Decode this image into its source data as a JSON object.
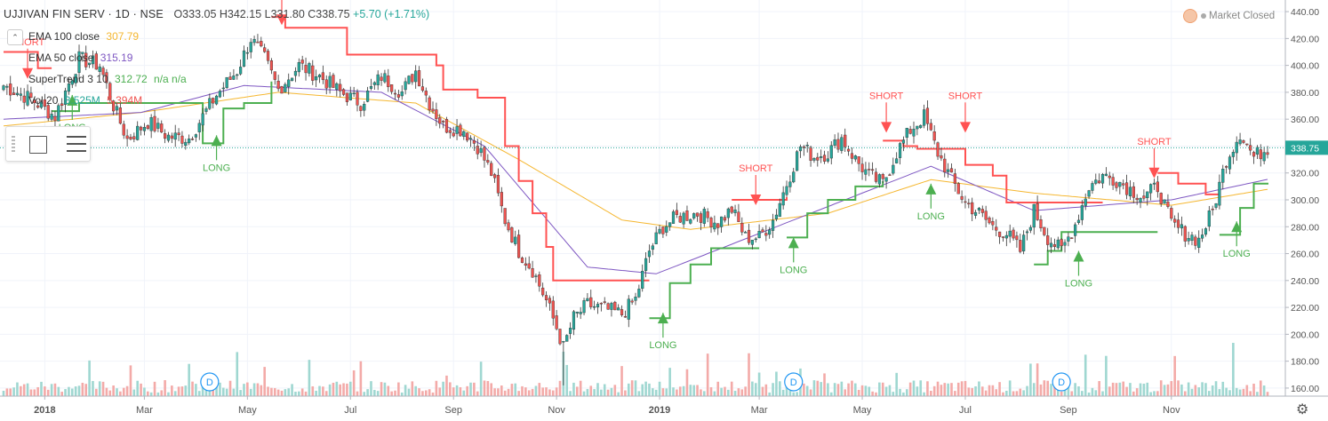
{
  "header": {
    "symbol": "UJJIVAN FIN SERV · 1D · NSE",
    "ohlc": "O333.05 H342.15 L331.80 C338.75",
    "change": "+5.70 (+1.71%)"
  },
  "market_status": "Market Closed",
  "indicators": [
    {
      "label": "EMA 100 close",
      "value": "307.79",
      "color": "#f5b731"
    },
    {
      "label": "EMA 50 close",
      "value": "315.19",
      "color": "#7e57c2"
    },
    {
      "label": "SuperTrend 3 10",
      "value": "312.72",
      "extra": "n/a n/a",
      "color": "#26a69a"
    },
    {
      "label": "Vol 20",
      "value": "3.525M",
      "value2": "5.394M",
      "color": "#26a69a"
    }
  ],
  "colors": {
    "up": "#26a69a",
    "down": "#ef5350",
    "st_up": "#4caf50",
    "st_down": "#ff5252",
    "ema100": "#f5b731",
    "ema50": "#7e57c2",
    "grid": "#f0f3fa"
  },
  "icons": [
    "chevron-down-icon",
    "drag-handle-icon",
    "rectangle-tool-icon",
    "object-tree-icon",
    "settings-gear-icon",
    "market-status-icon"
  ],
  "chart_data": {
    "type": "candlestick",
    "y_axis_ticks": [
      "440.00",
      "420.00",
      "400.00",
      "380.00",
      "360.00",
      "340.00",
      "320.00",
      "300.00",
      "280.00",
      "260.00",
      "240.00",
      "220.00",
      "200.00",
      "180.00",
      "160.00"
    ],
    "ylim": [
      154,
      446
    ],
    "x_axis_labels": [
      "2018",
      "Mar",
      "May",
      "Jul",
      "Sep",
      "Nov",
      "2019",
      "Mar",
      "May",
      "Jul",
      "Sep",
      "Nov"
    ],
    "last_price": "338.75",
    "price_path": [
      {
        "t": 0,
        "p": 385
      },
      {
        "t": 8,
        "p": 375
      },
      {
        "t": 15,
        "p": 362
      },
      {
        "t": 22,
        "p": 405
      },
      {
        "t": 28,
        "p": 400
      },
      {
        "t": 32,
        "p": 370
      },
      {
        "t": 36,
        "p": 345
      },
      {
        "t": 42,
        "p": 358
      },
      {
        "t": 48,
        "p": 347
      },
      {
        "t": 54,
        "p": 346
      },
      {
        "t": 62,
        "p": 378
      },
      {
        "t": 68,
        "p": 396
      },
      {
        "t": 72,
        "p": 420
      },
      {
        "t": 76,
        "p": 405
      },
      {
        "t": 80,
        "p": 382
      },
      {
        "t": 86,
        "p": 400
      },
      {
        "t": 92,
        "p": 392
      },
      {
        "t": 98,
        "p": 380
      },
      {
        "t": 104,
        "p": 372
      },
      {
        "t": 110,
        "p": 392
      },
      {
        "t": 116,
        "p": 380
      },
      {
        "t": 120,
        "p": 396
      },
      {
        "t": 124,
        "p": 372
      },
      {
        "t": 128,
        "p": 355
      },
      {
        "t": 134,
        "p": 352
      },
      {
        "t": 138,
        "p": 340
      },
      {
        "t": 142,
        "p": 320
      },
      {
        "t": 146,
        "p": 285
      },
      {
        "t": 150,
        "p": 262
      },
      {
        "t": 154,
        "p": 248
      },
      {
        "t": 158,
        "p": 225
      },
      {
        "t": 161,
        "p": 205
      },
      {
        "t": 163,
        "p": 190
      },
      {
        "t": 166,
        "p": 212
      },
      {
        "t": 170,
        "p": 222
      },
      {
        "t": 176,
        "p": 218
      },
      {
        "t": 180,
        "p": 215
      },
      {
        "t": 184,
        "p": 226
      },
      {
        "t": 188,
        "p": 262
      },
      {
        "t": 192,
        "p": 280
      },
      {
        "t": 196,
        "p": 287
      },
      {
        "t": 202,
        "p": 290
      },
      {
        "t": 208,
        "p": 283
      },
      {
        "t": 212,
        "p": 293
      },
      {
        "t": 216,
        "p": 272
      },
      {
        "t": 220,
        "p": 272
      },
      {
        "t": 224,
        "p": 285
      },
      {
        "t": 228,
        "p": 312
      },
      {
        "t": 232,
        "p": 340
      },
      {
        "t": 236,
        "p": 332
      },
      {
        "t": 240,
        "p": 335
      },
      {
        "t": 244,
        "p": 346
      },
      {
        "t": 248,
        "p": 330
      },
      {
        "t": 252,
        "p": 318
      },
      {
        "t": 256,
        "p": 312
      },
      {
        "t": 260,
        "p": 335
      },
      {
        "t": 264,
        "p": 352
      },
      {
        "t": 268,
        "p": 362
      },
      {
        "t": 272,
        "p": 335
      },
      {
        "t": 276,
        "p": 315
      },
      {
        "t": 280,
        "p": 298
      },
      {
        "t": 284,
        "p": 290
      },
      {
        "t": 288,
        "p": 280
      },
      {
        "t": 292,
        "p": 275
      },
      {
        "t": 296,
        "p": 262
      },
      {
        "t": 300,
        "p": 292
      },
      {
        "t": 304,
        "p": 272
      },
      {
        "t": 308,
        "p": 262
      },
      {
        "t": 312,
        "p": 282
      },
      {
        "t": 316,
        "p": 310
      },
      {
        "t": 320,
        "p": 318
      },
      {
        "t": 324,
        "p": 315
      },
      {
        "t": 328,
        "p": 308
      },
      {
        "t": 332,
        "p": 302
      },
      {
        "t": 336,
        "p": 310
      },
      {
        "t": 340,
        "p": 282
      },
      {
        "t": 344,
        "p": 275
      },
      {
        "t": 348,
        "p": 270
      },
      {
        "t": 352,
        "p": 292
      },
      {
        "t": 356,
        "p": 330
      },
      {
        "t": 360,
        "p": 350
      },
      {
        "t": 364,
        "p": 332
      },
      {
        "t": 368,
        "p": 338.75
      }
    ],
    "ema100_path": [
      {
        "t": 0,
        "p": 355
      },
      {
        "t": 40,
        "p": 365
      },
      {
        "t": 80,
        "p": 380
      },
      {
        "t": 120,
        "p": 372
      },
      {
        "t": 150,
        "p": 330
      },
      {
        "t": 180,
        "p": 285
      },
      {
        "t": 200,
        "p": 278
      },
      {
        "t": 240,
        "p": 290
      },
      {
        "t": 270,
        "p": 315
      },
      {
        "t": 300,
        "p": 305
      },
      {
        "t": 340,
        "p": 296
      },
      {
        "t": 368,
        "p": 307.79
      }
    ],
    "ema50_path": [
      {
        "t": 0,
        "p": 360
      },
      {
        "t": 40,
        "p": 365
      },
      {
        "t": 70,
        "p": 385
      },
      {
        "t": 110,
        "p": 380
      },
      {
        "t": 140,
        "p": 340
      },
      {
        "t": 170,
        "p": 250
      },
      {
        "t": 190,
        "p": 245
      },
      {
        "t": 230,
        "p": 285
      },
      {
        "t": 270,
        "p": 325
      },
      {
        "t": 300,
        "p": 292
      },
      {
        "t": 340,
        "p": 300
      },
      {
        "t": 368,
        "p": 315.19
      }
    ],
    "supertrend_segments": [
      {
        "trend": "down",
        "points": [
          {
            "t": 0,
            "p": 410
          },
          {
            "t": 10,
            "p": 398
          },
          {
            "t": 14,
            "p": 398
          }
        ]
      },
      {
        "trend": "up",
        "points": [
          {
            "t": 14,
            "p": 366
          },
          {
            "t": 22,
            "p": 372
          },
          {
            "t": 58,
            "p": 342
          },
          {
            "t": 60,
            "p": 342
          },
          {
            "t": 64,
            "p": 368
          },
          {
            "t": 70,
            "p": 372
          },
          {
            "t": 78,
            "p": 388
          }
        ]
      },
      {
        "trend": "down",
        "points": [
          {
            "t": 78,
            "p": 436
          },
          {
            "t": 82,
            "p": 428
          },
          {
            "t": 100,
            "p": 408
          },
          {
            "t": 126,
            "p": 400
          },
          {
            "t": 128,
            "p": 382
          },
          {
            "t": 138,
            "p": 376
          },
          {
            "t": 146,
            "p": 340
          },
          {
            "t": 150,
            "p": 314
          },
          {
            "t": 154,
            "p": 290
          },
          {
            "t": 158,
            "p": 265
          },
          {
            "t": 160,
            "p": 240
          },
          {
            "t": 188,
            "p": 240
          }
        ]
      },
      {
        "trend": "up",
        "points": [
          {
            "t": 188,
            "p": 212
          },
          {
            "t": 194,
            "p": 238
          },
          {
            "t": 200,
            "p": 252
          },
          {
            "t": 206,
            "p": 264
          },
          {
            "t": 220,
            "p": 264
          }
        ]
      },
      {
        "trend": "down",
        "points": [
          {
            "t": 212,
            "p": 300
          },
          {
            "t": 228,
            "p": 302
          }
        ]
      },
      {
        "trend": "up",
        "points": [
          {
            "t": 228,
            "p": 272
          },
          {
            "t": 234,
            "p": 290
          },
          {
            "t": 240,
            "p": 300
          },
          {
            "t": 248,
            "p": 310
          },
          {
            "t": 256,
            "p": 314
          }
        ]
      },
      {
        "trend": "down",
        "points": [
          {
            "t": 256,
            "p": 344
          },
          {
            "t": 262,
            "p": 340
          },
          {
            "t": 266,
            "p": 338
          },
          {
            "t": 280,
            "p": 326
          },
          {
            "t": 288,
            "p": 318
          },
          {
            "t": 292,
            "p": 298
          },
          {
            "t": 320,
            "p": 298
          }
        ]
      },
      {
        "trend": "up",
        "points": [
          {
            "t": 300,
            "p": 252
          },
          {
            "t": 304,
            "p": 262
          },
          {
            "t": 308,
            "p": 276
          },
          {
            "t": 336,
            "p": 276
          }
        ]
      },
      {
        "trend": "down",
        "points": [
          {
            "t": 336,
            "p": 320
          },
          {
            "t": 342,
            "p": 312
          },
          {
            "t": 350,
            "p": 304
          },
          {
            "t": 354,
            "p": 304
          }
        ]
      },
      {
        "trend": "up",
        "points": [
          {
            "t": 354,
            "p": 274
          },
          {
            "t": 360,
            "p": 294
          },
          {
            "t": 364,
            "p": 312
          },
          {
            "t": 368,
            "p": 312.72
          }
        ]
      }
    ],
    "signals": [
      {
        "type": "SHORT",
        "t": 7,
        "p": 390
      },
      {
        "type": "LONG",
        "t": 20,
        "p": 378
      },
      {
        "type": "LONG",
        "t": 62,
        "p": 348
      },
      {
        "type": "SHORT",
        "t": 81,
        "p": 430
      },
      {
        "type": "LONG",
        "t": 192,
        "p": 216
      },
      {
        "type": "SHORT",
        "t": 219,
        "p": 296
      },
      {
        "type": "LONG",
        "t": 230,
        "p": 272
      },
      {
        "type": "SHORT",
        "t": 257,
        "p": 350
      },
      {
        "type": "LONG",
        "t": 270,
        "p": 312
      },
      {
        "type": "SHORT",
        "t": 280,
        "p": 350
      },
      {
        "type": "LONG",
        "t": 313,
        "p": 262
      },
      {
        "type": "SHORT",
        "t": 335,
        "p": 316
      },
      {
        "type": "LONG",
        "t": 359,
        "p": 284
      }
    ],
    "dividend_markers": [
      "D",
      "D",
      "D"
    ],
    "dividend_t": [
      60,
      230,
      308
    ]
  }
}
